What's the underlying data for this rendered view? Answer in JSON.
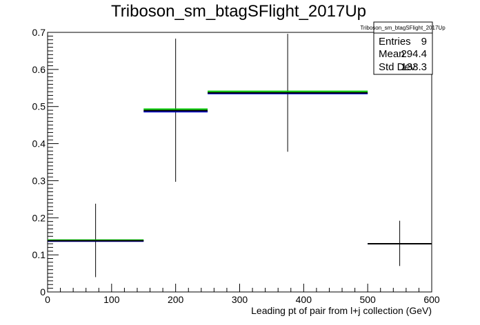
{
  "chart_data": {
    "type": "histogram",
    "title": "Triboson_sm_btagSFlight_2017Up",
    "xlabel": "Leading pt of pair from l+j collection (GeV)",
    "ylabel": "",
    "xlim": [
      0,
      600
    ],
    "ylim": [
      0,
      0.7
    ],
    "x_ticks": [
      0,
      100,
      200,
      300,
      400,
      500,
      600
    ],
    "y_ticks": [
      0,
      0.1,
      0.2,
      0.3,
      0.4,
      0.5,
      0.6,
      0.7
    ],
    "x_tick_labels": [
      "0",
      "100",
      "200",
      "300",
      "400",
      "500",
      "600"
    ],
    "y_tick_labels": [
      "0",
      "0.1",
      "0.2",
      "0.3",
      "0.4",
      "0.5",
      "0.6",
      "0.7"
    ],
    "grid": false,
    "bins": [
      {
        "xlow": 0,
        "xhigh": 150,
        "center": 75,
        "value": 0.138,
        "err_low": 0.04,
        "err_high": 0.238
      },
      {
        "xlow": 150,
        "xhigh": 250,
        "center": 200,
        "value": 0.489,
        "err_low": 0.297,
        "err_high": 0.683
      },
      {
        "xlow": 250,
        "xhigh": 500,
        "center": 375,
        "value": 0.537,
        "err_low": 0.378,
        "err_high": 0.696
      },
      {
        "xlow": 500,
        "xhigh": 600,
        "center": 550,
        "value": 0.13,
        "err_low": 0.07,
        "err_high": 0.192
      }
    ],
    "series": [
      {
        "color": "#00cc00",
        "values": [
          0.14,
          0.493,
          0.541,
          0.13
        ]
      },
      {
        "color": "#0000cc",
        "values": [
          0.137,
          0.486,
          0.535,
          0.13
        ]
      },
      {
        "color": "#000000",
        "values": [
          0.138,
          0.489,
          0.537,
          0.13
        ]
      }
    ],
    "stats": {
      "title": "Triboson_sm_btagSFlight_2017Up",
      "rows": [
        {
          "label": "Entries",
          "value": "9"
        },
        {
          "label": "Mean",
          "value": "294.4"
        },
        {
          "label": "Std Dev",
          "value": "133.3"
        }
      ]
    }
  }
}
